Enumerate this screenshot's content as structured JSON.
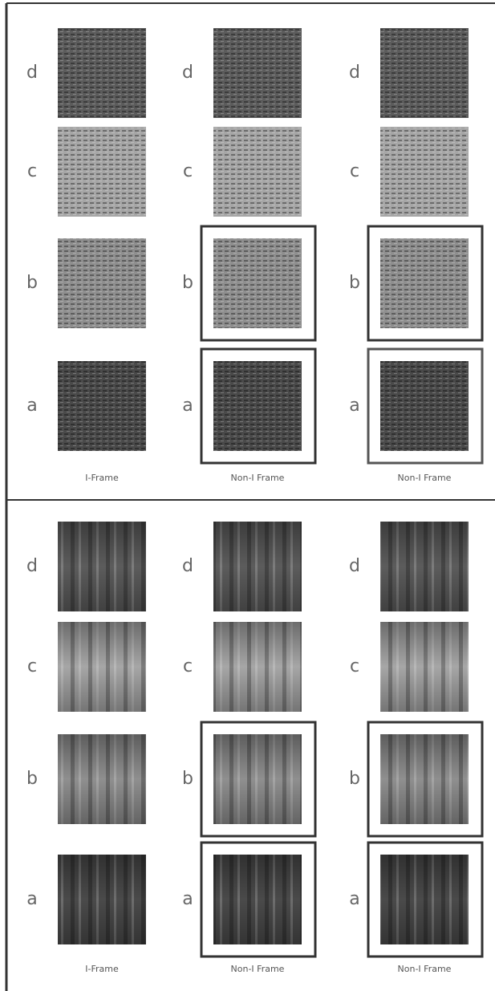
{
  "panels": [
    {
      "columns": [
        {
          "labels": [
            "d",
            "c",
            "b",
            "a"
          ],
          "caption": "I-Frame"
        },
        {
          "labels": [
            "d",
            "c",
            "b",
            "a"
          ],
          "caption": "Non-I Frame"
        },
        {
          "labels": [
            "d",
            "c",
            "b",
            "a"
          ],
          "caption": "Non-I Frame"
        }
      ]
    },
    {
      "columns": [
        {
          "labels": [
            "d",
            "c",
            "b",
            "a"
          ],
          "caption": "I-Frame"
        },
        {
          "labels": [
            "d",
            "c",
            "b",
            "a"
          ],
          "caption": "Non-I Frame"
        },
        {
          "labels": [
            "d",
            "c",
            "b",
            "a"
          ],
          "caption": "Non-I Frame"
        }
      ]
    }
  ]
}
